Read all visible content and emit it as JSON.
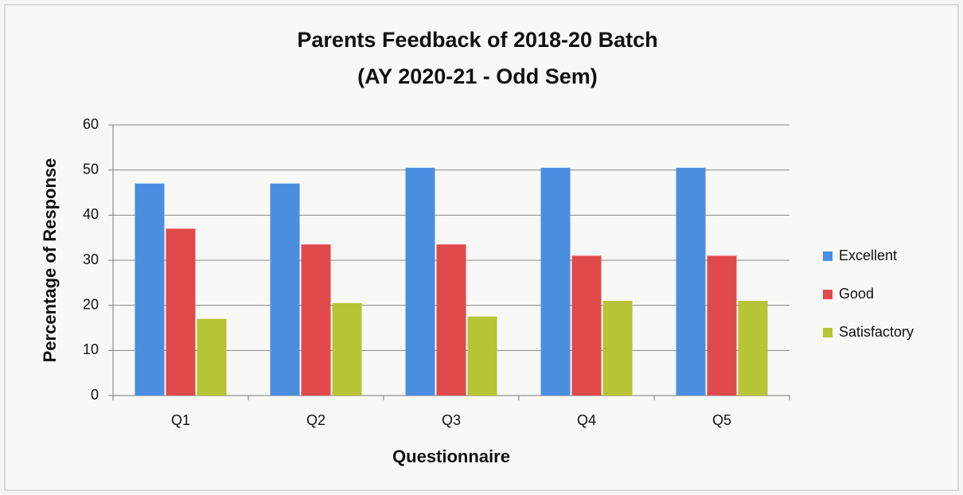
{
  "chart_data": {
    "type": "bar",
    "title": "Parents Feedback of 2018-20 Batch",
    "subtitle": "(AY 2020-21 - Odd Sem)",
    "x_label": "Questionnaire",
    "y_label": "Percentage of Response",
    "categories": [
      "Q1",
      "Q2",
      "Q3",
      "Q4",
      "Q5"
    ],
    "series": [
      {
        "name": "Excellent",
        "color": "#4a8ee0",
        "values": [
          47,
          47,
          50.5,
          50.5,
          50.5
        ]
      },
      {
        "name": "Good",
        "color": "#e04a4a",
        "values": [
          37,
          33.5,
          33.5,
          31,
          31
        ]
      },
      {
        "name": "Satisfactory",
        "color": "#b5c535",
        "values": [
          17,
          20.5,
          17.5,
          21,
          21
        ]
      }
    ],
    "ylim": [
      0,
      60
    ],
    "yticks": [
      0,
      10,
      20,
      30,
      40,
      50,
      60
    ],
    "grid": true,
    "legend": "right"
  }
}
